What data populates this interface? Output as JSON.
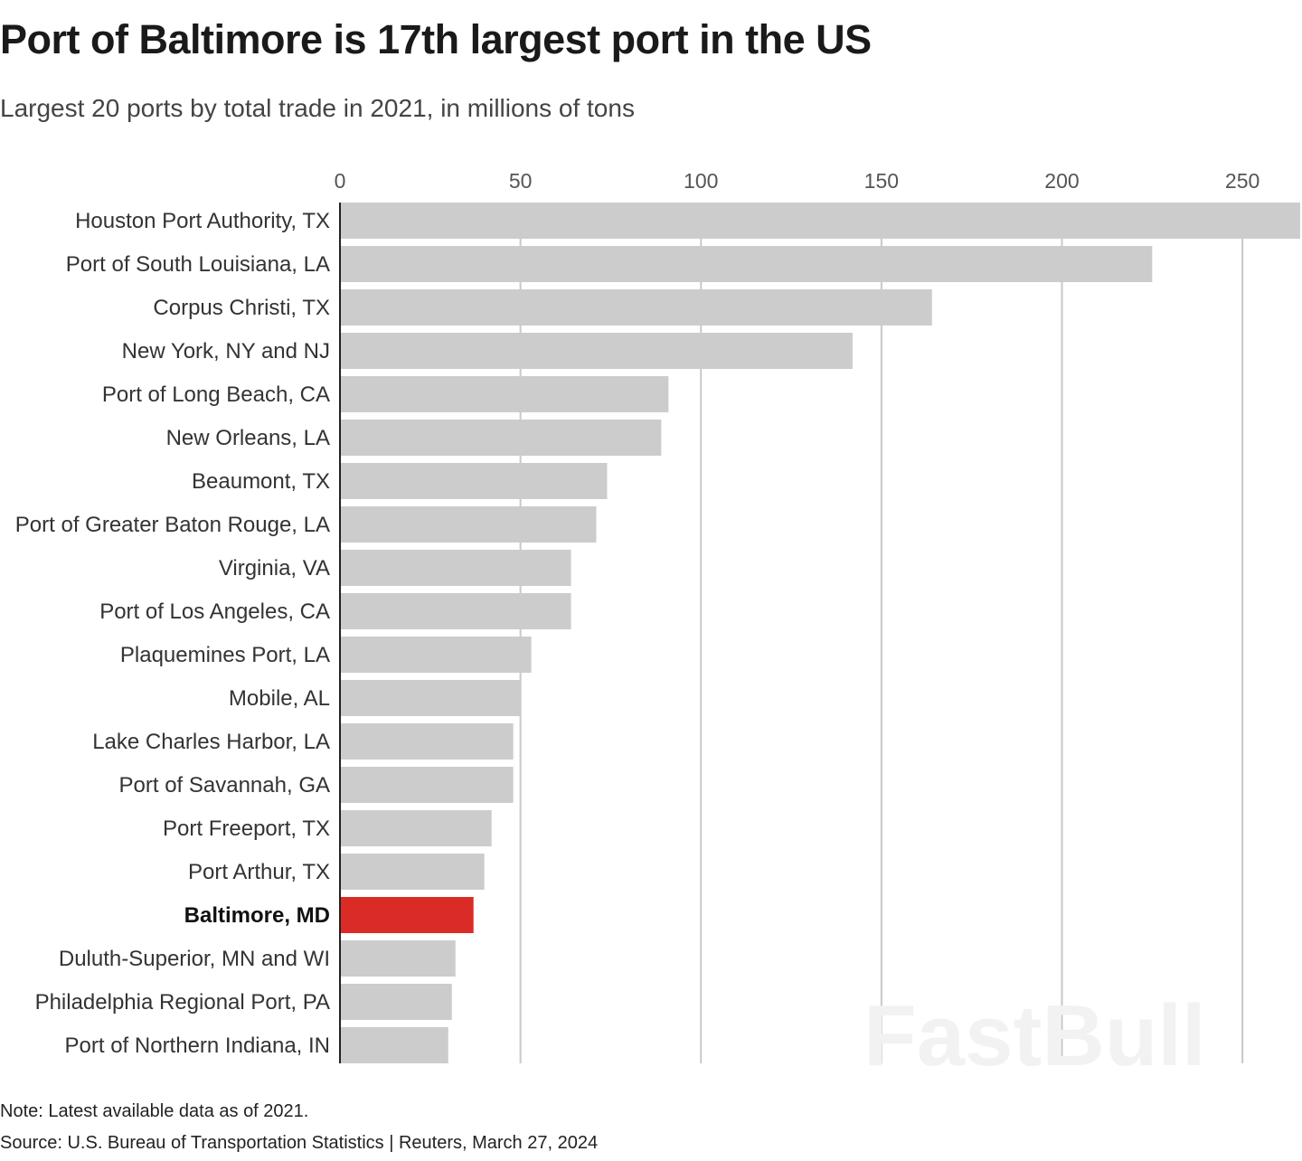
{
  "chart_data": {
    "type": "bar",
    "orientation": "horizontal",
    "title": "Port of Baltimore is 17th largest port in the US",
    "subtitle": "Largest 20 ports by total trade in 2021, in millions of tons",
    "categories": [
      "Houston Port Authority, TX",
      "Port of South Louisiana, LA",
      "Corpus Christi, TX",
      "New York, NY and NJ",
      "Port of Long Beach, CA",
      "New Orleans, LA",
      "Beaumont, TX",
      "Port of Greater Baton Rouge, LA",
      "Virginia, VA",
      "Port of Los Angeles, CA",
      "Plaquemines Port, LA",
      "Mobile, AL",
      "Lake Charles Harbor, LA",
      "Port of Savannah, GA",
      "Port Freeport, TX",
      "Port Arthur, TX",
      "Baltimore, MD",
      "Duluth-Superior, MN and WI",
      "Philadelphia Regional Port, PA",
      "Port of Northern Indiana, IN"
    ],
    "values": [
      266,
      225,
      164,
      142,
      91,
      89,
      74,
      71,
      64,
      64,
      53,
      50,
      48,
      48,
      42,
      40,
      37,
      32,
      31,
      30
    ],
    "highlight": "Baltimore, MD",
    "xlim": [
      0,
      266
    ],
    "xticks": [
      0,
      50,
      100,
      150,
      200,
      250
    ],
    "tick_labels": [
      "0",
      "50",
      "100",
      "150",
      "200",
      "250"
    ],
    "grid": true,
    "xlabel": "",
    "ylabel": "",
    "colors": {
      "bar": "#cccccc",
      "highlight": "#db2b27",
      "grid": "#c8c8c8",
      "axis": "#222222"
    }
  },
  "footer": {
    "note": "Note: Latest available data as of 2021.",
    "source": "Source: U.S. Bureau of Transportation Statistics | Reuters, March 27, 2024"
  },
  "watermark": "FastBull"
}
